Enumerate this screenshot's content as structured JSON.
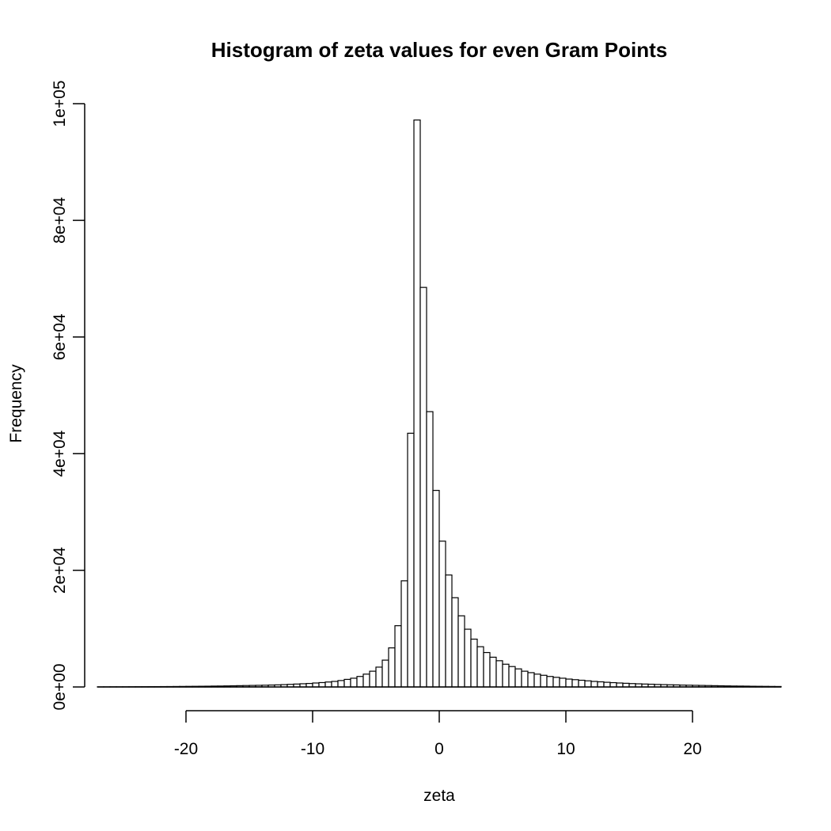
{
  "chart_data": {
    "type": "bar",
    "title": "Histogram of zeta values for even Gram Points",
    "xlabel": "zeta",
    "ylabel": "Frequency",
    "xlim": [
      -27,
      27
    ],
    "ylim": [
      0,
      100000
    ],
    "bin_width": 0.5,
    "bin_start": -27,
    "x_ticks": [
      -20,
      -10,
      0,
      10,
      20
    ],
    "x_tick_labels": [
      "-20",
      "-10",
      "0",
      "10",
      "20"
    ],
    "y_ticks": [
      0,
      20000,
      40000,
      60000,
      80000,
      100000
    ],
    "y_tick_labels": [
      "0e+00",
      "2e+04",
      "4e+04",
      "6e+04",
      "8e+04",
      "1e+05"
    ],
    "grid": false,
    "values": [
      20,
      25,
      30,
      30,
      35,
      40,
      45,
      50,
      55,
      60,
      65,
      70,
      80,
      90,
      100,
      110,
      120,
      130,
      150,
      160,
      180,
      200,
      220,
      240,
      260,
      280,
      300,
      330,
      360,
      400,
      450,
      500,
      550,
      600,
      680,
      750,
      850,
      950,
      1100,
      1300,
      1500,
      1800,
      2200,
      2700,
      3400,
      4600,
      6700,
      10500,
      18200,
      43500,
      97200,
      68500,
      47200,
      33700,
      25000,
      19200,
      15300,
      12200,
      9900,
      8200,
      6900,
      5900,
      5100,
      4500,
      3900,
      3500,
      3100,
      2700,
      2450,
      2200,
      2000,
      1800,
      1650,
      1500,
      1350,
      1250,
      1150,
      1050,
      950,
      880,
      800,
      740,
      680,
      630,
      580,
      540,
      500,
      470,
      430,
      400,
      370,
      350,
      320,
      300,
      280,
      260,
      240,
      220,
      200,
      180,
      160,
      150,
      140,
      120,
      110,
      100,
      90,
      80
    ]
  }
}
